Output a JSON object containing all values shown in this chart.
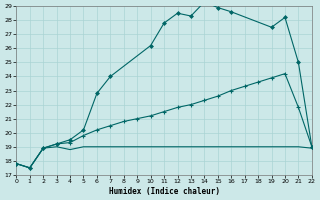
{
  "xlabel": "Humidex (Indice chaleur)",
  "bg_color": "#cce8e8",
  "grid_color": "#aad4d4",
  "line_color": "#006666",
  "xlim": [
    0,
    22
  ],
  "ylim": [
    17,
    29
  ],
  "yticks": [
    17,
    18,
    19,
    20,
    21,
    22,
    23,
    24,
    25,
    26,
    27,
    28,
    29
  ],
  "xticks": [
    0,
    1,
    2,
    3,
    4,
    5,
    6,
    7,
    8,
    9,
    10,
    11,
    12,
    13,
    14,
    15,
    16,
    17,
    18,
    19,
    20,
    21,
    22
  ],
  "flat_x": [
    0,
    1,
    2,
    3,
    4,
    5,
    6,
    7,
    8,
    9,
    10,
    11,
    12,
    13,
    14,
    15,
    16,
    17,
    18,
    19,
    20,
    21,
    22
  ],
  "flat_y": [
    17.8,
    17.5,
    18.9,
    19.0,
    18.8,
    19.0,
    19.0,
    19.0,
    19.0,
    19.0,
    19.0,
    19.0,
    19.0,
    19.0,
    19.0,
    19.0,
    19.0,
    19.0,
    19.0,
    19.0,
    19.0,
    19.0,
    18.9
  ],
  "diag_x": [
    0,
    1,
    2,
    3,
    4,
    5,
    6,
    7,
    8,
    9,
    10,
    11,
    12,
    13,
    14,
    15,
    16,
    17,
    18,
    19,
    20,
    21,
    22
  ],
  "diag_y": [
    17.8,
    17.5,
    18.9,
    19.2,
    19.3,
    19.8,
    20.2,
    20.5,
    20.8,
    21.0,
    21.2,
    21.5,
    21.8,
    22.0,
    22.3,
    22.6,
    23.0,
    23.3,
    23.6,
    23.9,
    24.2,
    21.8,
    19.0
  ],
  "main_x": [
    0,
    1,
    2,
    3,
    4,
    5,
    6,
    7,
    10,
    11,
    12,
    13,
    14,
    15,
    16,
    19,
    20,
    21,
    22
  ],
  "main_y": [
    17.8,
    17.5,
    18.9,
    19.2,
    19.5,
    20.2,
    22.8,
    24.0,
    26.2,
    27.8,
    28.5,
    28.3,
    29.3,
    28.9,
    28.6,
    27.5,
    28.2,
    25.0,
    19.0
  ]
}
